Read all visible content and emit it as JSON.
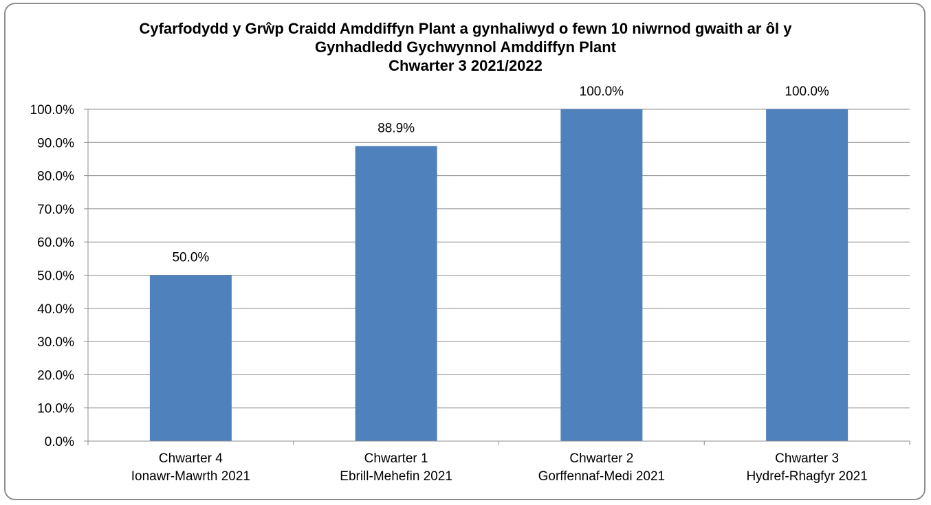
{
  "chart_data": {
    "type": "bar",
    "title": [
      "Cyfarfodydd y Grŵp Craidd Amddiffyn Plant a gynhaliwyd o fewn 10 niwrnod gwaith ar ôl y",
      "Gynhadledd Gychwynnol Amddiffyn Plant",
      "Chwarter 3  2021/2022"
    ],
    "categories": [
      [
        "Chwarter 4",
        "Ionawr-Mawrth 2021"
      ],
      [
        "Chwarter 1",
        "Ebrill-Mehefin 2021"
      ],
      [
        "Chwarter 2",
        "Gorffennaf-Medi 2021"
      ],
      [
        "Chwarter 3",
        "Hydref-Rhagfyr 2021"
      ]
    ],
    "values": [
      50.0,
      88.9,
      100.0,
      100.0
    ],
    "data_labels": [
      "50.0%",
      "88.9%",
      "100.0%",
      "100.0%"
    ],
    "ylim": [
      0,
      100
    ],
    "y_ticks": [
      0,
      10,
      20,
      30,
      40,
      50,
      60,
      70,
      80,
      90,
      100
    ],
    "y_tick_labels": [
      "0.0%",
      "10.0%",
      "20.0%",
      "30.0%",
      "40.0%",
      "50.0%",
      "60.0%",
      "70.0%",
      "80.0%",
      "90.0%",
      "100.0%"
    ],
    "grid": true,
    "legend": "none",
    "xlabel": "",
    "ylabel": "",
    "colors": {
      "bar": "#4f81bd",
      "grid": "#8c8c8c",
      "frame": "#8c8c8c"
    }
  }
}
